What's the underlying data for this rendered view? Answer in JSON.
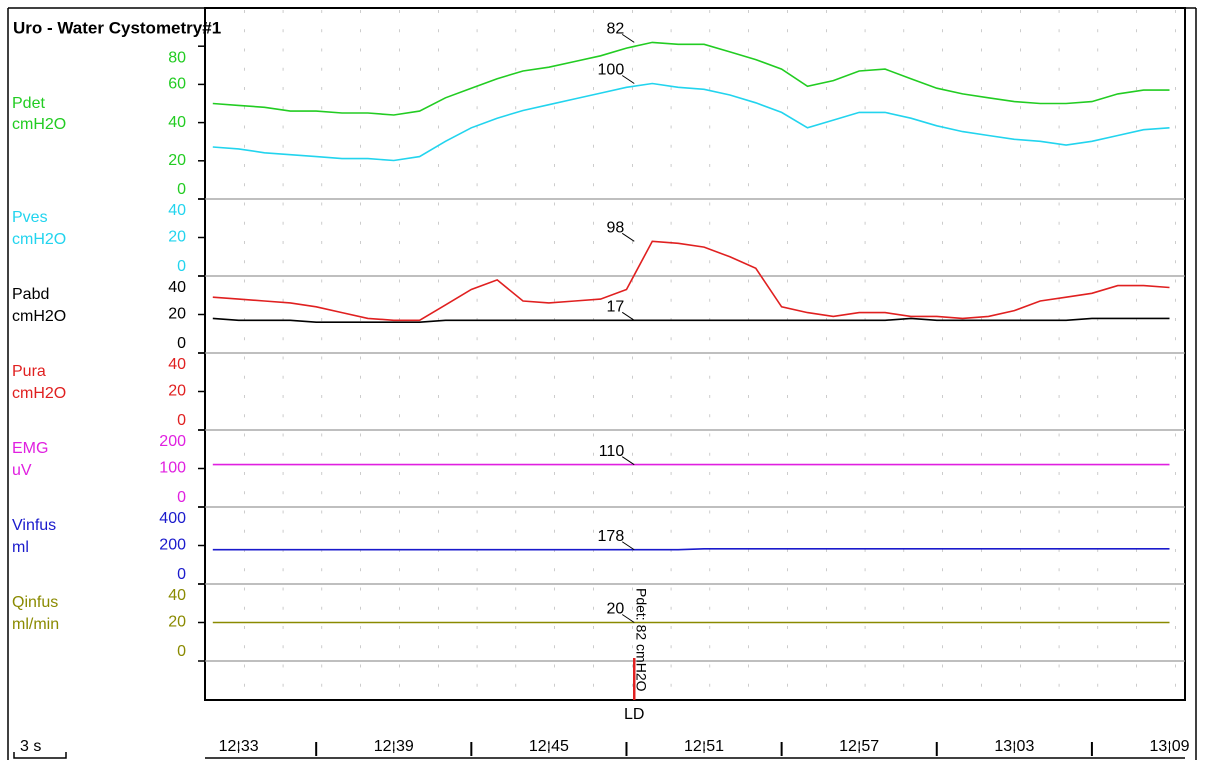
{
  "chart_data": {
    "type": "line",
    "title": "Uro - Water Cystometry#1",
    "x": [
      752,
      753,
      754,
      755,
      756,
      757,
      758,
      759,
      760,
      761,
      762,
      763,
      764,
      765,
      766,
      767,
      768,
      769,
      770,
      771,
      772,
      773,
      774,
      775,
      776,
      777,
      778,
      779,
      780,
      781,
      782,
      783,
      784,
      785,
      786,
      787,
      788,
      789
    ],
    "xlim": [
      751.7,
      789.6
    ],
    "xticks": [
      {
        "value": 753,
        "label": "12:33"
      },
      {
        "value": 759,
        "label": "12:39"
      },
      {
        "value": 765,
        "label": "12:45"
      },
      {
        "value": 771,
        "label": "12:51"
      },
      {
        "value": 777,
        "label": "12:57"
      },
      {
        "value": 783,
        "label": "13:03"
      },
      {
        "value": 789,
        "label": "13:09"
      }
    ],
    "xminorticks": [
      756,
      762,
      768,
      774,
      780,
      786
    ],
    "scale_label": "3 s",
    "series": [
      {
        "name": "Pdet",
        "unit": "cmH2O",
        "color": "#22cc22",
        "ylim": [
          0,
          100
        ],
        "yticks": [
          0,
          20,
          40,
          60,
          80
        ],
        "marker_value": 82,
        "values": [
          50,
          49,
          48,
          46,
          46,
          45,
          45,
          44,
          46,
          53,
          58,
          63,
          67,
          69,
          72,
          75,
          79,
          82,
          81,
          81,
          77,
          73,
          68,
          59,
          62,
          67,
          68,
          63,
          58,
          55,
          53,
          51,
          50,
          50,
          51,
          55,
          57,
          57
        ]
      },
      {
        "name": "Pves",
        "unit": "cmH2O",
        "color": "#22d4ee",
        "ylim": [
          0,
          40
        ],
        "yticks": [
          0,
          20,
          40
        ],
        "marker_value": 100,
        "values": [
          67,
          66,
          64,
          63,
          62,
          61,
          61,
          60,
          62,
          70,
          77,
          82,
          86,
          89,
          92,
          95,
          98,
          100,
          98,
          97,
          94,
          90,
          85,
          77,
          81,
          85,
          85,
          82,
          78,
          75,
          73,
          71,
          70,
          68,
          70,
          73,
          76,
          77
        ]
      },
      {
        "name": "Pabd",
        "unit": "cmH2O",
        "color": "#000000",
        "ylim": [
          0,
          40
        ],
        "yticks": [
          0,
          20,
          40
        ],
        "marker_value": 17,
        "values": [
          18,
          17,
          17,
          17,
          16,
          16,
          16,
          16,
          16,
          17,
          17,
          17,
          17,
          17,
          17,
          17,
          17,
          17,
          17,
          17,
          17,
          17,
          17,
          17,
          17,
          17,
          17,
          18,
          17,
          17,
          17,
          17,
          17,
          17,
          18,
          18,
          18,
          18
        ]
      },
      {
        "name": "Pura",
        "unit": "cmH2O",
        "color": "#e02020",
        "ylim": [
          0,
          40
        ],
        "yticks": [
          0,
          20,
          40
        ],
        "marker_value": 98,
        "values": [
          69,
          68,
          67,
          66,
          64,
          61,
          58,
          57,
          57,
          65,
          73,
          78,
          67,
          66,
          67,
          68,
          73,
          98,
          97,
          95,
          90,
          84,
          64,
          61,
          59,
          61,
          61,
          59,
          59,
          58,
          59,
          62,
          67,
          69,
          71,
          75,
          75,
          74
        ]
      },
      {
        "name": "EMG",
        "unit": "uV",
        "color": "#e020e0",
        "ylim": [
          0,
          200
        ],
        "yticks": [
          0,
          100,
          200
        ],
        "marker_value": 110,
        "values": [
          110,
          110,
          110,
          110,
          110,
          110,
          110,
          110,
          110,
          110,
          110,
          110,
          110,
          110,
          110,
          110,
          110,
          110,
          110,
          110,
          110,
          110,
          110,
          110,
          110,
          110,
          110,
          110,
          110,
          110,
          110,
          110,
          110,
          110,
          110,
          110,
          110,
          110
        ]
      },
      {
        "name": "Vinfus",
        "unit": "ml",
        "color": "#1a1acc",
        "ylim": [
          0,
          400
        ],
        "yticks": [
          0,
          200,
          400
        ],
        "marker_value": 178,
        "values": [
          178,
          178,
          178,
          178,
          178,
          178,
          178,
          178,
          178,
          178,
          178,
          178,
          178,
          178,
          178,
          178,
          178,
          178,
          178,
          183,
          183,
          183,
          183,
          183,
          183,
          183,
          183,
          183,
          183,
          183,
          183,
          183,
          183,
          183,
          183,
          183,
          183,
          183
        ]
      },
      {
        "name": "Qinfus",
        "unit": "ml/min",
        "color": "#8a8a00",
        "ylim": [
          0,
          40
        ],
        "yticks": [
          0,
          20,
          40
        ],
        "marker_value": 20,
        "values": [
          20,
          20,
          20,
          20,
          20,
          20,
          20,
          20,
          20,
          20,
          20,
          20,
          20,
          20,
          20,
          20,
          20,
          20,
          20,
          20,
          20,
          20,
          20,
          20,
          20,
          20,
          20,
          20,
          20,
          20,
          20,
          20,
          20,
          20,
          20,
          20,
          20,
          20
        ]
      }
    ],
    "event": {
      "x": 768.3,
      "label": "LD",
      "note": "Pdet: 82 cmH2O"
    }
  }
}
